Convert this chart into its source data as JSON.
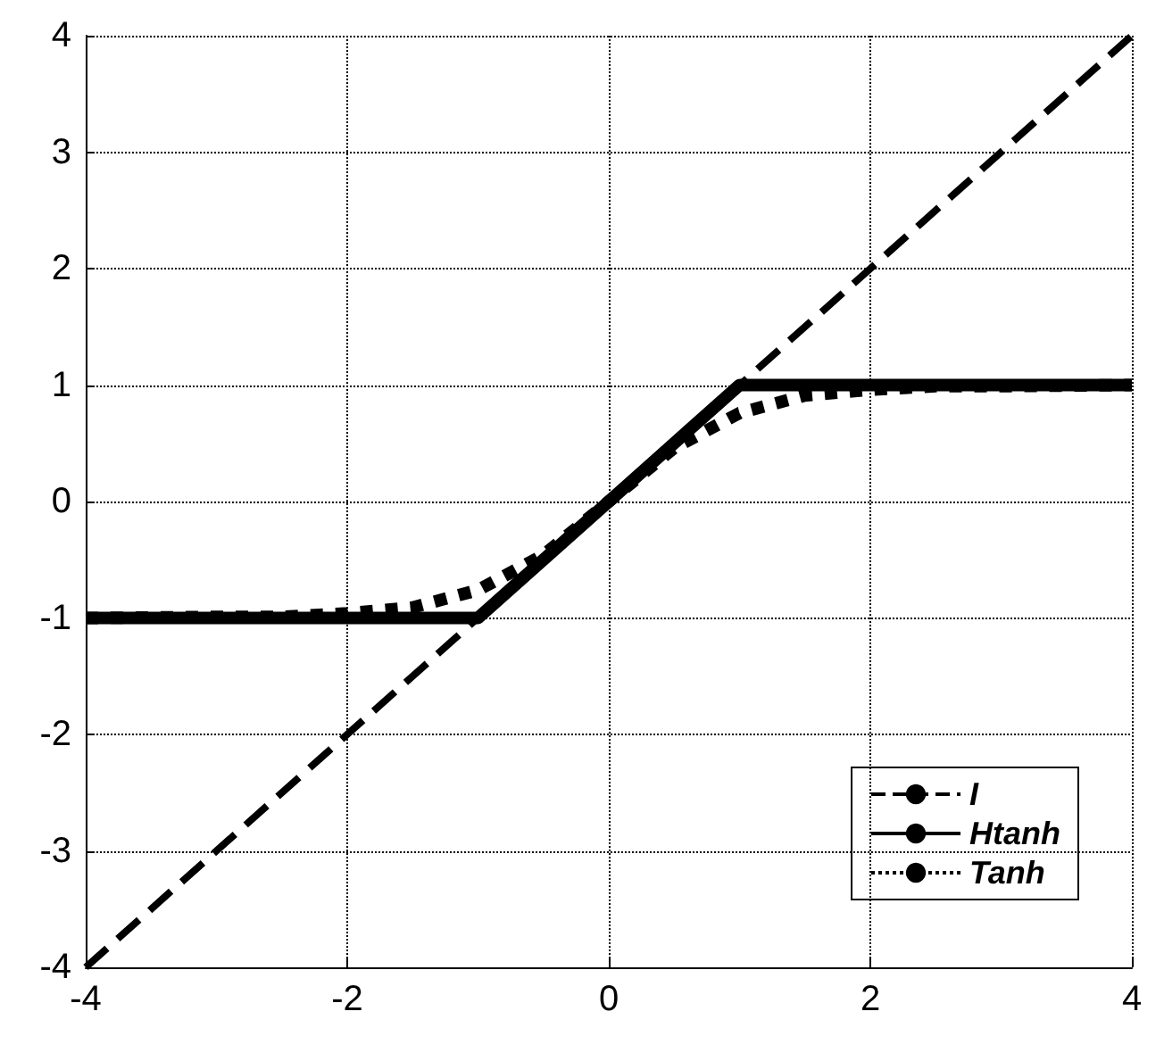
{
  "chart_data": {
    "type": "line",
    "xlim": [
      -4,
      4
    ],
    "ylim": [
      -4,
      4
    ],
    "xticks": [
      -4,
      -2,
      0,
      2,
      4
    ],
    "yticks": [
      -4,
      -3,
      -2,
      -1,
      0,
      1,
      2,
      3,
      4
    ],
    "grid": true,
    "legend": "bottom right",
    "marker": "none",
    "series": [
      {
        "name": "I",
        "color": "#000000",
        "line_style": "dashed",
        "x": [
          -4,
          4
        ],
        "values": [
          -4,
          4
        ]
      },
      {
        "name": "Htanh",
        "color": "#000000",
        "line_style": "solid",
        "x": [
          -4,
          -1,
          1,
          4
        ],
        "values": [
          -1,
          -1,
          1,
          1
        ]
      },
      {
        "name": "Tanh",
        "color": "#000000",
        "line_style": "dotted",
        "x": [
          -4,
          -3,
          -2.5,
          -2,
          -1.5,
          -1,
          -0.5,
          0,
          0.5,
          1,
          1.5,
          2,
          2.5,
          3,
          4
        ],
        "values": [
          -1,
          -0.99,
          -0.99,
          -0.96,
          -0.91,
          -0.76,
          -0.46,
          0,
          0.46,
          0.76,
          0.91,
          0.96,
          0.99,
          0.99,
          1
        ]
      }
    ]
  }
}
